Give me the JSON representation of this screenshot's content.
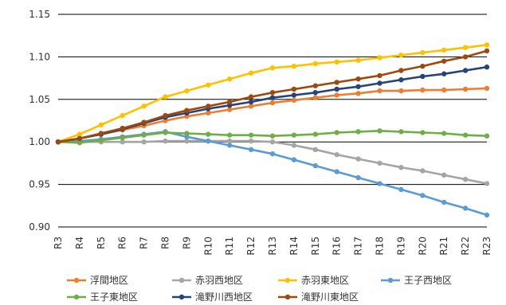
{
  "chart_data": {
    "type": "line",
    "x": [
      "R3",
      "R4",
      "R5",
      "R6",
      "R7",
      "R8",
      "R9",
      "R10",
      "R11",
      "R12",
      "R13",
      "R14",
      "R15",
      "R16",
      "R17",
      "R18",
      "R19",
      "R20",
      "R21",
      "R22",
      "R23"
    ],
    "ylim": [
      0.9,
      1.15
    ],
    "yticks": [
      "0.90",
      "0.95",
      "1.00",
      "1.05",
      "1.10",
      "1.15"
    ],
    "grid": true,
    "legend_position": "bottom",
    "series": [
      {
        "name": "浮間地区",
        "color": "#ED7D31",
        "values": [
          1.0,
          1.004,
          1.009,
          1.014,
          1.019,
          1.025,
          1.03,
          1.034,
          1.038,
          1.042,
          1.046,
          1.049,
          1.052,
          1.055,
          1.057,
          1.06,
          1.06,
          1.061,
          1.061,
          1.062,
          1.063
        ]
      },
      {
        "name": "赤羽西地区",
        "color": "#A5A5A5",
        "values": [
          1.0,
          1.0,
          1.0,
          1.0,
          1.0,
          1.001,
          1.001,
          1.001,
          1.001,
          1.001,
          1.0,
          0.996,
          0.991,
          0.985,
          0.98,
          0.975,
          0.97,
          0.966,
          0.961,
          0.956,
          0.951
        ]
      },
      {
        "name": "赤羽東地区",
        "color": "#FFC000",
        "values": [
          1.0,
          1.009,
          1.02,
          1.031,
          1.042,
          1.053,
          1.06,
          1.067,
          1.074,
          1.081,
          1.087,
          1.089,
          1.092,
          1.094,
          1.096,
          1.099,
          1.102,
          1.105,
          1.108,
          1.111,
          1.114
        ]
      },
      {
        "name": "王子西地区",
        "color": "#5B9BD5",
        "values": [
          1.0,
          1.001,
          1.003,
          1.006,
          1.009,
          1.012,
          1.006,
          1.001,
          0.996,
          0.991,
          0.986,
          0.979,
          0.972,
          0.965,
          0.958,
          0.951,
          0.944,
          0.937,
          0.929,
          0.922,
          0.914
        ]
      },
      {
        "name": "王子東地区",
        "color": "#70AD47",
        "values": [
          1.0,
          0.999,
          1.002,
          1.005,
          1.008,
          1.011,
          1.01,
          1.009,
          1.008,
          1.008,
          1.007,
          1.008,
          1.009,
          1.011,
          1.012,
          1.013,
          1.012,
          1.011,
          1.01,
          1.008,
          1.007
        ]
      },
      {
        "name": "滝野川西地区",
        "color": "#264478",
        "values": [
          1.0,
          1.004,
          1.009,
          1.015,
          1.022,
          1.029,
          1.034,
          1.039,
          1.043,
          1.047,
          1.052,
          1.055,
          1.058,
          1.062,
          1.065,
          1.069,
          1.073,
          1.077,
          1.08,
          1.084,
          1.088
        ]
      },
      {
        "name": "滝野川東地区",
        "color": "#9E480E",
        "values": [
          1.0,
          1.004,
          1.01,
          1.016,
          1.023,
          1.031,
          1.037,
          1.042,
          1.047,
          1.053,
          1.058,
          1.062,
          1.066,
          1.07,
          1.074,
          1.078,
          1.084,
          1.089,
          1.095,
          1.1,
          1.107
        ]
      }
    ]
  }
}
